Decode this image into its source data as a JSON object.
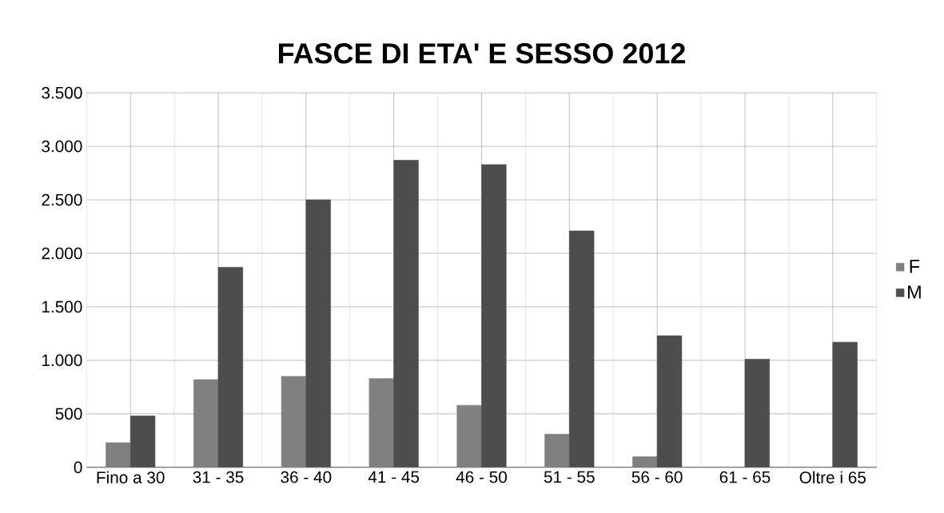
{
  "chart_data": {
    "type": "bar",
    "title": "FASCE DI ETA' E SESSO 2012",
    "categories": [
      "Fino a 30",
      "31 - 35",
      "36 - 40",
      "41 - 45",
      "46 - 50",
      "51 - 55",
      "56 - 60",
      "61 - 65",
      "Oltre i 65"
    ],
    "series": [
      {
        "name": "F",
        "color": "#808080",
        "values": [
          230,
          820,
          850,
          830,
          580,
          310,
          100,
          null,
          null
        ]
      },
      {
        "name": "M",
        "color": "#4d4d4d",
        "values": [
          480,
          1870,
          2500,
          2870,
          2830,
          2210,
          1230,
          1010,
          1170
        ]
      }
    ],
    "ylim": [
      0,
      3500
    ],
    "yticks": [
      0,
      {
        "value": 500,
        "label": "500"
      },
      {
        "value": 1000,
        "label": "1.000"
      },
      {
        "value": 1500,
        "label": "1.500"
      },
      {
        "value": 2000,
        "label": "2.000"
      },
      {
        "value": 2500,
        "label": "2.500"
      },
      {
        "value": 3000,
        "label": "3.000"
      },
      {
        "value": 3500,
        "label": "3.500"
      }
    ],
    "grid": true,
    "legend": "right"
  }
}
